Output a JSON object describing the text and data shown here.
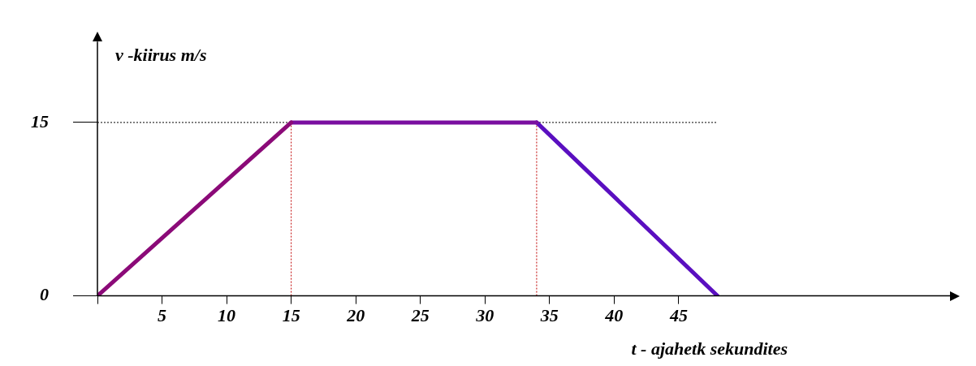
{
  "chart_data": {
    "type": "line",
    "xlabel": "t - ajahetk sekundites",
    "ylabel": "v -kiirus m/s",
    "xlim": [
      0,
      66
    ],
    "xticks": [
      {
        "value": 0,
        "label": null
      },
      5,
      10,
      15,
      20,
      25,
      30,
      35,
      40,
      45
    ],
    "ylim": [
      0,
      22
    ],
    "yticks": [
      0,
      15
    ],
    "series": [
      {
        "type": "line",
        "color": "#8b0a78",
        "x": [
          0,
          15
        ],
        "values": [
          0,
          15
        ]
      },
      {
        "type": "line",
        "color": "#7a0fa0",
        "x": [
          15,
          34
        ],
        "values": [
          15,
          15
        ]
      },
      {
        "type": "line",
        "color": "#5a0fc0",
        "x": [
          34,
          48
        ],
        "values": [
          15,
          0
        ]
      }
    ],
    "ref_lines": [
      {
        "axis": "y",
        "value": 15,
        "color": "#000000",
        "line_style": "dotted"
      },
      {
        "axis": "x",
        "value": 15,
        "color": "#c00000",
        "line_style": "dotted"
      },
      {
        "axis": "x",
        "value": 34,
        "color": "#c00000",
        "line_style": "dotted"
      }
    ],
    "grid": false,
    "legend": false,
    "marker": "none",
    "line_style": "solid"
  }
}
